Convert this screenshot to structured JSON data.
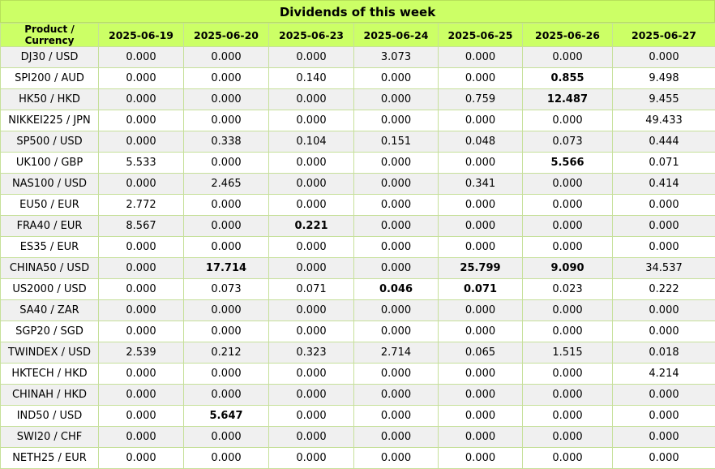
{
  "title": "Dividends of this week",
  "header": {
    "product": "Product / Currency",
    "dates": [
      "2025-06-19",
      "2025-06-20",
      "2025-06-23",
      "2025-06-24",
      "2025-06-25",
      "2025-06-26",
      "2025-06-27"
    ]
  },
  "rows": [
    {
      "name": "DJ30 / USD",
      "values": [
        "0.000",
        "0.000",
        "0.000",
        "3.073",
        "0.000",
        "0.000",
        "0.000"
      ],
      "bold": []
    },
    {
      "name": "SPI200 / AUD",
      "values": [
        "0.000",
        "0.000",
        "0.140",
        "0.000",
        "0.000",
        "0.855",
        "9.498"
      ],
      "bold": [
        5
      ]
    },
    {
      "name": "HK50 / HKD",
      "values": [
        "0.000",
        "0.000",
        "0.000",
        "0.000",
        "0.759",
        "12.487",
        "9.455"
      ],
      "bold": [
        5
      ]
    },
    {
      "name": "NIKKEI225 / JPN",
      "values": [
        "0.000",
        "0.000",
        "0.000",
        "0.000",
        "0.000",
        "0.000",
        "49.433"
      ],
      "bold": []
    },
    {
      "name": "SP500 / USD",
      "values": [
        "0.000",
        "0.338",
        "0.104",
        "0.151",
        "0.048",
        "0.073",
        "0.444"
      ],
      "bold": []
    },
    {
      "name": "UK100 / GBP",
      "values": [
        "5.533",
        "0.000",
        "0.000",
        "0.000",
        "0.000",
        "5.566",
        "0.071"
      ],
      "bold": [
        5
      ]
    },
    {
      "name": "NAS100 / USD",
      "values": [
        "0.000",
        "2.465",
        "0.000",
        "0.000",
        "0.341",
        "0.000",
        "0.414"
      ],
      "bold": []
    },
    {
      "name": "EU50 / EUR",
      "values": [
        "2.772",
        "0.000",
        "0.000",
        "0.000",
        "0.000",
        "0.000",
        "0.000"
      ],
      "bold": []
    },
    {
      "name": "FRA40 / EUR",
      "values": [
        "8.567",
        "0.000",
        "0.221",
        "0.000",
        "0.000",
        "0.000",
        "0.000"
      ],
      "bold": [
        2
      ]
    },
    {
      "name": "ES35 / EUR",
      "values": [
        "0.000",
        "0.000",
        "0.000",
        "0.000",
        "0.000",
        "0.000",
        "0.000"
      ],
      "bold": []
    },
    {
      "name": "CHINA50 / USD",
      "values": [
        "0.000",
        "17.714",
        "0.000",
        "0.000",
        "25.799",
        "9.090",
        "34.537"
      ],
      "bold": [
        1,
        4,
        5
      ]
    },
    {
      "name": "US2000 / USD",
      "values": [
        "0.000",
        "0.073",
        "0.071",
        "0.046",
        "0.071",
        "0.023",
        "0.222"
      ],
      "bold": [
        3,
        4
      ]
    },
    {
      "name": "SA40 / ZAR",
      "values": [
        "0.000",
        "0.000",
        "0.000",
        "0.000",
        "0.000",
        "0.000",
        "0.000"
      ],
      "bold": []
    },
    {
      "name": "SGP20 / SGD",
      "values": [
        "0.000",
        "0.000",
        "0.000",
        "0.000",
        "0.000",
        "0.000",
        "0.000"
      ],
      "bold": []
    },
    {
      "name": "TWINDEX / USD",
      "values": [
        "2.539",
        "0.212",
        "0.323",
        "2.714",
        "0.065",
        "1.515",
        "0.018"
      ],
      "bold": []
    },
    {
      "name": "HKTECH / HKD",
      "values": [
        "0.000",
        "0.000",
        "0.000",
        "0.000",
        "0.000",
        "0.000",
        "4.214"
      ],
      "bold": []
    },
    {
      "name": "CHINAH / HKD",
      "values": [
        "0.000",
        "0.000",
        "0.000",
        "0.000",
        "0.000",
        "0.000",
        "0.000"
      ],
      "bold": []
    },
    {
      "name": "IND50 / USD",
      "values": [
        "0.000",
        "5.647",
        "0.000",
        "0.000",
        "0.000",
        "0.000",
        "0.000"
      ],
      "bold": [
        1
      ]
    },
    {
      "name": "SWI20 / CHF",
      "values": [
        "0.000",
        "0.000",
        "0.000",
        "0.000",
        "0.000",
        "0.000",
        "0.000"
      ],
      "bold": []
    },
    {
      "name": "NETH25 / EUR",
      "values": [
        "0.000",
        "0.000",
        "0.000",
        "0.000",
        "0.000",
        "0.000",
        "0.000"
      ],
      "bold": []
    }
  ],
  "colors": {
    "header_bg": "#ccff66",
    "row_alt": "#f0f0f0",
    "row": "#ffffff",
    "border": "#c6e09a"
  }
}
